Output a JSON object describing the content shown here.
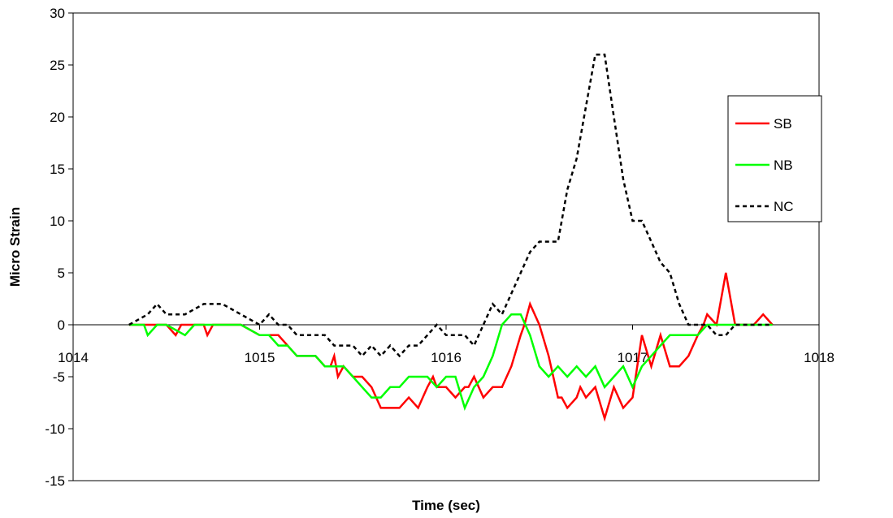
{
  "chart_data": {
    "type": "line",
    "title": "",
    "xlabel": "Time (sec)",
    "ylabel": "Micro Strain",
    "xlim": [
      1014,
      1018
    ],
    "ylim": [
      -15,
      30
    ],
    "xticks": [
      1014,
      1015,
      1016,
      1017,
      1018
    ],
    "yticks": [
      30,
      25,
      20,
      15,
      10,
      5,
      0,
      -5,
      -10,
      -15
    ],
    "grid": false,
    "legend_position": "right",
    "series": [
      {
        "name": "SB",
        "color": "#ff0000",
        "dash": "solid",
        "x": [
          1014.3,
          1014.5,
          1014.55,
          1014.58,
          1014.6,
          1014.7,
          1014.72,
          1014.75,
          1014.8,
          1014.9,
          1015.0,
          1015.05,
          1015.1,
          1015.15,
          1015.2,
          1015.3,
          1015.35,
          1015.38,
          1015.4,
          1015.42,
          1015.45,
          1015.5,
          1015.55,
          1015.6,
          1015.65,
          1015.7,
          1015.72,
          1015.75,
          1015.8,
          1015.85,
          1015.9,
          1015.93,
          1015.95,
          1016.0,
          1016.05,
          1016.1,
          1016.12,
          1016.15,
          1016.2,
          1016.25,
          1016.3,
          1016.35,
          1016.4,
          1016.42,
          1016.45,
          1016.5,
          1016.55,
          1016.6,
          1016.62,
          1016.65,
          1016.7,
          1016.72,
          1016.75,
          1016.8,
          1016.85,
          1016.9,
          1016.95,
          1017.0,
          1017.05,
          1017.1,
          1017.15,
          1017.2,
          1017.25,
          1017.3,
          1017.35,
          1017.38,
          1017.4,
          1017.45,
          1017.5,
          1017.55,
          1017.6,
          1017.65,
          1017.7,
          1017.75
        ],
        "y": [
          0,
          0,
          -1,
          0,
          0,
          0,
          -1,
          0,
          0,
          0,
          -1,
          -1,
          -1,
          -2,
          -3,
          -3,
          -4,
          -4,
          -3,
          -5,
          -4,
          -5,
          -5,
          -6,
          -8,
          -8,
          -8,
          -8,
          -7,
          -8,
          -6,
          -5,
          -6,
          -6,
          -7,
          -6,
          -6,
          -5,
          -7,
          -6,
          -6,
          -4,
          -1,
          0,
          2,
          0,
          -3,
          -7,
          -7,
          -8,
          -7,
          -6,
          -7,
          -6,
          -9,
          -6,
          -8,
          -7,
          -1,
          -4,
          -1,
          -4,
          -4,
          -3,
          -1,
          0,
          1,
          0,
          5,
          0,
          0,
          0,
          1,
          0
        ]
      },
      {
        "name": "NB",
        "color": "#00ff00",
        "dash": "solid",
        "x": [
          1014.3,
          1014.38,
          1014.4,
          1014.45,
          1014.5,
          1014.6,
          1014.65,
          1014.8,
          1014.9,
          1015.0,
          1015.05,
          1015.1,
          1015.15,
          1015.2,
          1015.25,
          1015.3,
          1015.35,
          1015.45,
          1015.5,
          1015.55,
          1015.6,
          1015.65,
          1015.7,
          1015.75,
          1015.8,
          1015.85,
          1015.9,
          1015.95,
          1016.0,
          1016.05,
          1016.1,
          1016.15,
          1016.2,
          1016.25,
          1016.3,
          1016.35,
          1016.4,
          1016.45,
          1016.5,
          1016.55,
          1016.6,
          1016.65,
          1016.7,
          1016.75,
          1016.8,
          1016.85,
          1016.9,
          1016.95,
          1017.0,
          1017.05,
          1017.1,
          1017.15,
          1017.2,
          1017.3,
          1017.35,
          1017.4,
          1017.45,
          1017.5,
          1017.55,
          1017.6,
          1017.65,
          1017.7,
          1017.75
        ],
        "y": [
          0,
          0,
          -1,
          0,
          0,
          -1,
          0,
          0,
          0,
          -1,
          -1,
          -2,
          -2,
          -3,
          -3,
          -3,
          -4,
          -4,
          -5,
          -6,
          -7,
          -7,
          -6,
          -6,
          -5,
          -5,
          -5,
          -6,
          -5,
          -5,
          -8,
          -6,
          -5,
          -3,
          0,
          1,
          1,
          -1,
          -4,
          -5,
          -4,
          -5,
          -4,
          -5,
          -4,
          -6,
          -5,
          -4,
          -6,
          -4,
          -3,
          -2,
          -1,
          -1,
          -1,
          0,
          0,
          0,
          0,
          0,
          0,
          0,
          0
        ]
      },
      {
        "name": "NC",
        "color": "#000000",
        "dash": "dashed",
        "x": [
          1014.3,
          1014.4,
          1014.45,
          1014.5,
          1014.55,
          1014.6,
          1014.7,
          1014.8,
          1014.9,
          1015.0,
          1015.05,
          1015.1,
          1015.15,
          1015.2,
          1015.3,
          1015.35,
          1015.4,
          1015.45,
          1015.5,
          1015.55,
          1015.6,
          1015.65,
          1015.7,
          1015.75,
          1015.8,
          1015.85,
          1015.9,
          1015.95,
          1016.0,
          1016.05,
          1016.1,
          1016.15,
          1016.2,
          1016.25,
          1016.3,
          1016.35,
          1016.4,
          1016.45,
          1016.5,
          1016.55,
          1016.6,
          1016.65,
          1016.7,
          1016.75,
          1016.8,
          1016.85,
          1016.9,
          1016.95,
          1017.0,
          1017.05,
          1017.1,
          1017.15,
          1017.2,
          1017.25,
          1017.3,
          1017.35,
          1017.4,
          1017.45,
          1017.5,
          1017.55,
          1017.6,
          1017.65,
          1017.7,
          1017.75
        ],
        "y": [
          0,
          1,
          2,
          1,
          1,
          1,
          2,
          2,
          1,
          0,
          1,
          0,
          0,
          -1,
          -1,
          -1,
          -2,
          -2,
          -2,
          -3,
          -2,
          -3,
          -2,
          -3,
          -2,
          -2,
          -1,
          0,
          -1,
          -1,
          -1,
          -2,
          0,
          2,
          1,
          3,
          5,
          7,
          8,
          8,
          8,
          13,
          16,
          21,
          26,
          26,
          20,
          14,
          10,
          10,
          8,
          6,
          5,
          2,
          0,
          0,
          0,
          -1,
          -1,
          0,
          0,
          0,
          0,
          0
        ]
      }
    ]
  }
}
